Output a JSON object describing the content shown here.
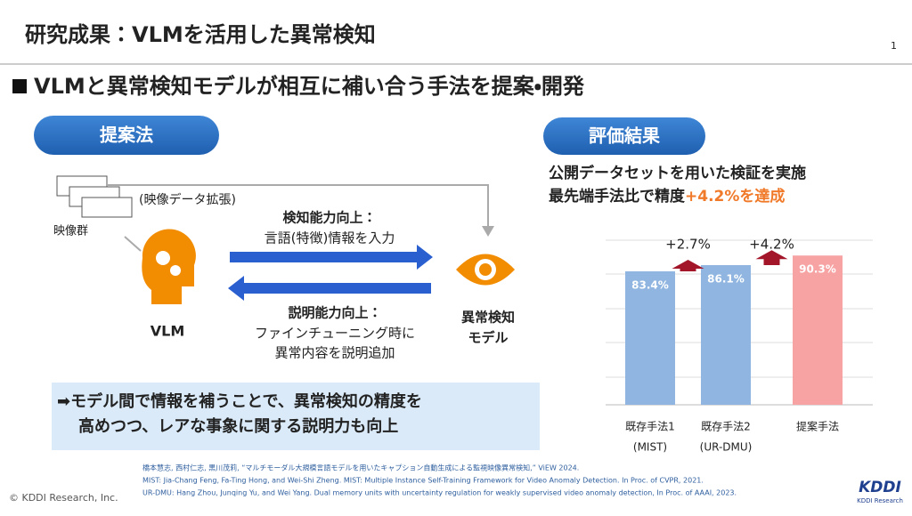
{
  "header": {
    "title": "研究成果：VLMを活用した異常検知",
    "page_number": "1"
  },
  "headline": "VLMと異常検知モデルが相互に補い合う手法を提案・開発",
  "method": {
    "badge": "提案法",
    "video_augment": "(映像データ拡張)",
    "video_group": "映像群",
    "detect_title": "検知能力向上：",
    "detect_text": "言語(特徴)情報を入力",
    "explain_title": "説明能力向上：",
    "explain_lines": [
      "ファインチューニング時に",
      "異常内容を説明追加"
    ],
    "vlm": "VLM",
    "model_lines": [
      "異常検知",
      "モデル"
    ],
    "summary_lines": [
      "➡モデル間で情報を補うことで、異常検知の精度を",
      "高めつつ、レアな事象に関する説明力も向上"
    ]
  },
  "results": {
    "badge": "評価結果",
    "line1": "公開データセットを用いた検証を実施",
    "line2_prefix": "最先端手法比で精度",
    "line2_highlight": "+4.2%を達成"
  },
  "chart": {
    "type": "bar",
    "categories": [
      "既存手法1",
      "既存手法2",
      "提案手法"
    ],
    "sublabels": [
      "(MIST)",
      "(UR-DMU)",
      null
    ],
    "values": [
      83.4,
      86.1,
      90.3
    ],
    "value_labels": [
      "83.4%",
      "86.1%",
      "90.3%"
    ],
    "colors": [
      "#8fb5e0",
      "#8fb5e0",
      "#f7a3a3"
    ],
    "ylim": [
      25,
      97
    ],
    "annotations": [
      "+2.7%",
      "+4.2%"
    ]
  },
  "footnotes": [
    "橋本慧志, 西村仁志, 黒川茂莉, “マルチモーダル大規模言語モデルを用いたキャプション自動生成による監視映像異常検知,” ViEW 2024.",
    "MIST: Jia-Chang Feng, Fa-Ting Hong, and Wei-Shi Zheng. MIST: Multiple Instance Self-Training Framework for Video Anomaly Detection. In Proc. of CVPR, 2021.",
    "UR-DMU: Hang Zhou, Junqing Yu, and Wei Yang. Dual memory units with uncertainty regulation for weakly supervised video anomaly detection, In Proc. of AAAI, 2023."
  ],
  "copyright": "© KDDI Research, Inc.",
  "logo": {
    "mark": "KDDI",
    "sub": "KDDI Research"
  }
}
